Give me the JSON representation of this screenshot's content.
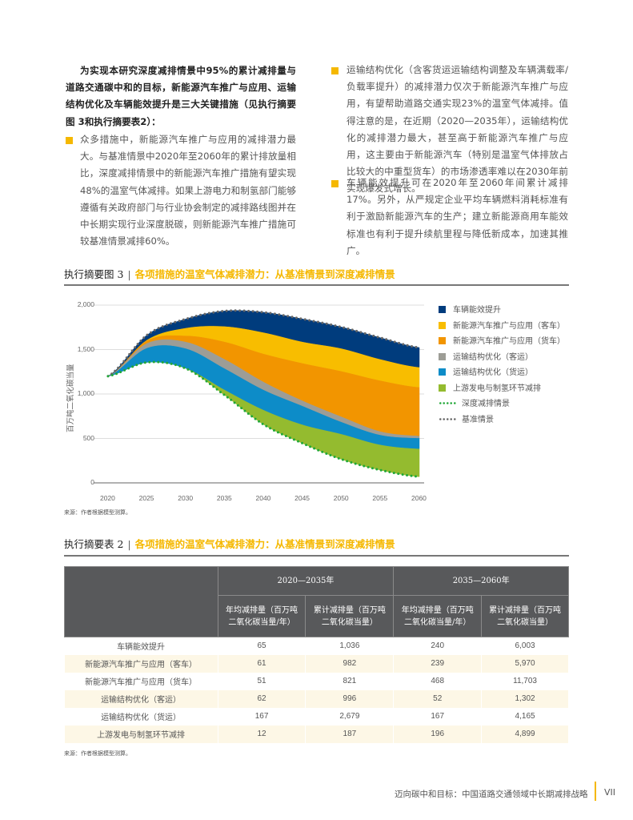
{
  "intro": "为实现本研究深度减排情景中95%的累计减排量与道路交通碳中和的目标，新能源汽车推广与应用、运输结构优化及车辆能效提升是三大关键措施（见执行摘要图 3和执行摘要表2）：",
  "bullets": [
    "众多措施中，新能源汽车推广与应用的减排潜力最大。与基准情景中2020年至2060年的累计排放量相比，深度减排情景中的新能源汽车推广措施有望实现48%的温室气体减排。如果上游电力和制氢部门能够遵循有关政府部门与行业协会制定的减排路线图并在中长期实现行业深度脱碳，则新能源汽车推广措施可较基准情景减排60%。",
    "运输结构优化（含客货运运输结构调整及车辆满载率/负载率提升）的减排潜力仅次于新能源汽车推广与应用，有望帮助道路交通实现23%的温室气体减排。值得注意的是，在近期（2020—2035年），运输结构优化的减排潜力最大，甚至高于新能源汽车推广与应用，这主要由于新能源汽车（特别是温室气体排放占比较大的中重型货车）的市场渗透率难以在2030年前实现爆发式增长。",
    "车辆能效提升可在2020年至2060年间累计减排17%。另外，从严规定企业平均车辆燃料消耗标准有利于激励新能源汽车的生产；建立新能源商用车能效标准也有利于提升续航里程与降低新成本，加速其推广。"
  ],
  "figure": {
    "label": "执行摘要图 3",
    "sep": "|",
    "title": "各项措施的温室气体减排潜力：从基准情景到深度减排情景",
    "source": "来源：作者根据模型测算。"
  },
  "chart_data": {
    "type": "area",
    "stacked": true,
    "ylabel": "百万吨二氧化碳当量",
    "x": [
      2020,
      2025,
      2030,
      2035,
      2040,
      2045,
      2050,
      2055,
      2060
    ],
    "xticks": [
      "2020",
      "2025",
      "2030",
      "2035",
      "2040",
      "2045",
      "2050",
      "2055",
      "2060"
    ],
    "yticks": [
      "0",
      "500",
      "1,000",
      "1,500",
      "2,000"
    ],
    "ylim": [
      0,
      2000
    ],
    "grid": true,
    "legend_position": "right",
    "deep_scenario": {
      "name": "深度减排情景",
      "values": [
        1200,
        1356,
        1287,
        986,
        656,
        445,
        265,
        144,
        69
      ],
      "color": "#22a838"
    },
    "baseline_scenario": {
      "name": "基准情景",
      "values": [
        1200,
        1663,
        1844,
        1934,
        1919,
        1844,
        1753,
        1633,
        1522
      ],
      "color": "#666666"
    },
    "series": [
      {
        "name": "上游发电与制氢环节减排",
        "values": [
          0,
          0,
          3,
          61,
          165,
          211,
          285,
          286,
          316
        ],
        "color": "#94bb2f"
      },
      {
        "name": "运输结构优化（货运）",
        "values": [
          0,
          163,
          223,
          240,
          226,
          210,
          136,
          110,
          120
        ],
        "color": "#0d8cc8"
      },
      {
        "name": "运输结构优化（客运）",
        "values": [
          0,
          54,
          75,
          105,
          90,
          60,
          60,
          40,
          25
        ],
        "color": "#9d9d96"
      },
      {
        "name": "新能源汽车推广与应用（货车）",
        "values": [
          0,
          30,
          69,
          196,
          316,
          421,
          511,
          572,
          547
        ],
        "color": "#f29500"
      },
      {
        "name": "新能源汽车推广与应用（客车）",
        "values": [
          0,
          7,
          87,
          174,
          240,
          241,
          256,
          240,
          225
        ],
        "color": "#f8bd00"
      },
      {
        "name": "车辆能效提升",
        "values": [
          0,
          53,
          100,
          172,
          226,
          256,
          240,
          241,
          220
        ],
        "color": "#003c7d"
      }
    ]
  },
  "legend": [
    "车辆能效提升",
    "新能源汽车推广与应用（客车）",
    "新能源汽车推广与应用（货车）",
    "运输结构优化（客运）",
    "运输结构优化（货运）",
    "上游发电与制氢环节减排",
    "深度减排情景",
    "基准情景"
  ],
  "table": {
    "label": "执行摘要表 2",
    "sep": "|",
    "title": "各项措施的温室气体减排潜力：从基准情景到深度减排情景",
    "periods": [
      "2020—2035年",
      "2035—2060年"
    ],
    "subheaders": [
      "年均减排量（百万吨二氧化碳当量/年）",
      "累计减排量（百万吨二氧化碳当量）",
      "年均减排量（百万吨二氧化碳当量/年）",
      "累计减排量（百万吨二氧化碳当量）"
    ],
    "rows": [
      [
        "车辆能效提升",
        "65",
        "1,036",
        "240",
        "6,003"
      ],
      [
        "新能源汽车推广与应用（客车）",
        "61",
        "982",
        "239",
        "5,970"
      ],
      [
        "新能源汽车推广与应用（货车）",
        "51",
        "821",
        "468",
        "11,703"
      ],
      [
        "运输结构优化（客运）",
        "62",
        "996",
        "52",
        "1,302"
      ],
      [
        "运输结构优化（货运）",
        "167",
        "2,679",
        "167",
        "4,165"
      ],
      [
        "上游发电与制氢环节减排",
        "12",
        "187",
        "196",
        "4,899"
      ]
    ],
    "source": "来源：作者根据模型测算。"
  },
  "footer": {
    "title": "迈向碳中和目标：中国道路交通领域中长期减排战略",
    "page": "VII",
    "accent": "#f5b800"
  }
}
